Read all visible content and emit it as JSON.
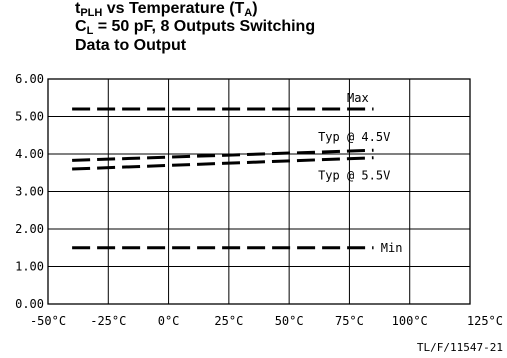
{
  "chart_data": {
    "type": "line",
    "title": {
      "line1_main": "t",
      "line1_sub": "PLH",
      "line1_rest": " vs Temperature (T",
      "line1_sub2": "A",
      "line1_end": ")",
      "line2_main": "C",
      "line2_sub": "L",
      "line2_rest": " = 50 pF, 8 Outputs Switching",
      "line3": "Data to Output"
    },
    "xlabel": "",
    "ylabel": "",
    "x_ticks": [
      "-50°C",
      "-25°C",
      "0°C",
      "25°C",
      "50°C",
      "75°C",
      "100°C",
      "125°C"
    ],
    "x_tick_values": [
      -50,
      -25,
      0,
      25,
      50,
      75,
      100,
      125
    ],
    "y_ticks": [
      "0.00",
      "1.00",
      "2.00",
      "3.00",
      "4.00",
      "5.00",
      "6.00"
    ],
    "y_tick_values": [
      0,
      1,
      2,
      3,
      4,
      5,
      6
    ],
    "xlim": [
      -50,
      125
    ],
    "ylim": [
      0,
      6
    ],
    "grid": true,
    "series": [
      {
        "name": "Max",
        "x": [
          -40,
          85
        ],
        "values": [
          5.2,
          5.2
        ]
      },
      {
        "name": "Typ @ 4.5V",
        "x": [
          -40,
          85
        ],
        "values": [
          3.83,
          4.1
        ]
      },
      {
        "name": "Typ @ 5.5V",
        "x": [
          -40,
          85
        ],
        "values": [
          3.6,
          3.9
        ]
      },
      {
        "name": "Min",
        "x": [
          -40,
          85
        ],
        "values": [
          1.5,
          1.5
        ]
      }
    ],
    "annotations": [
      {
        "text": "Max",
        "x": 74,
        "y": 5.5
      },
      {
        "text": "Typ @ 4.5V",
        "x": 62,
        "y": 4.45
      },
      {
        "text": "Typ @ 5.5V",
        "x": 62,
        "y": 3.43
      },
      {
        "text": "Min",
        "x": 88,
        "y": 1.5
      }
    ],
    "figure_id": "TL/F/11547-21"
  }
}
